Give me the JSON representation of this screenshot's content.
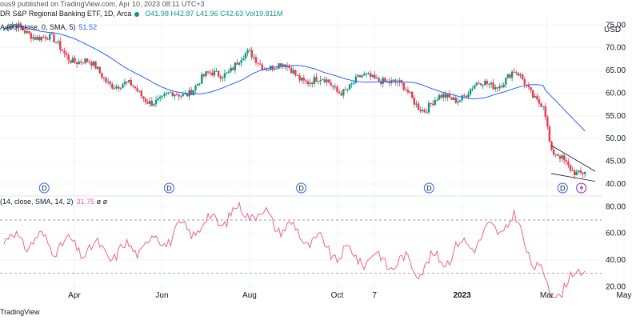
{
  "header": {
    "publisher": "ous9 published on TradingView.com, Apr 10, 2023 08:11 UTC+3",
    "title": "DR S&P Regional Banking ETF, 1D, Arca",
    "open": "O41.98",
    "high": "H42.87",
    "low": "L41.96",
    "close": "C42.63",
    "volume": "Vol19.811M",
    "ma_label": "A (50, close, 0, SMA, 5)",
    "ma_value": "51.52",
    "rsi_label": "(14, close, SMA, 14, 2)",
    "rsi_value": "31.75",
    "rsi_extra": "ø ø",
    "footer": "TradingView"
  },
  "colors": {
    "up": "#089981",
    "down": "#f23645",
    "ma": "#2962ff",
    "rsi": "#f06292",
    "grid": "#f0f3fa"
  },
  "chart_data": [
    {
      "type": "candlestick",
      "title": "S&P Regional Banking ETF, 1D, Arca",
      "ylabel": "USD",
      "yticks": [
        40.0,
        45.0,
        50.0,
        55.0,
        60.0,
        65.0,
        70.0,
        75.0
      ],
      "ytick_labels": [
        "40.00",
        "45.00",
        "50.00",
        "55.00",
        "60.00",
        "65.00",
        "70.00",
        "75.00"
      ],
      "ylim": [
        40,
        77
      ],
      "x_tick_labels": [
        "Apr",
        "Jun",
        "Aug",
        "Oct",
        "7",
        "2023",
        "Mar",
        "May"
      ],
      "key_points": [
        {
          "date": "2022-03",
          "close": 74
        },
        {
          "date": "2022-05",
          "close": 62
        },
        {
          "date": "2022-06",
          "close": 58
        },
        {
          "date": "2022-08",
          "close": 68
        },
        {
          "date": "2022-10",
          "close": 61
        },
        {
          "date": "2022-11",
          "close": 64
        },
        {
          "date": "2022-12",
          "close": 57
        },
        {
          "date": "2023-02",
          "close": 64
        },
        {
          "date": "2023-03-08",
          "close": 58
        },
        {
          "date": "2023-03-13",
          "close": 46
        },
        {
          "date": "2023-04-06",
          "close": 42.63
        }
      ],
      "series": [
        {
          "name": "MA (50, close, 0, SMA, 5)",
          "last_value": 51.52
        }
      ],
      "grid": true
    },
    {
      "type": "line",
      "title": "RSI (14, close, SMA, 14, 2)",
      "yticks": [
        20.0,
        40.0,
        60.0,
        80.0
      ],
      "ytick_labels": [
        "20.00",
        "40.00",
        "60.00",
        "80.00"
      ],
      "ylim": [
        10,
        85
      ],
      "bands": [
        30,
        70
      ],
      "last_value": 31.75,
      "key_points": [
        {
          "date": "2022-03",
          "value": 55
        },
        {
          "date": "2022-05",
          "value": 45
        },
        {
          "date": "2022-08",
          "value": 78
        },
        {
          "date": "2022-10",
          "value": 45
        },
        {
          "date": "2022-12",
          "value": 35
        },
        {
          "date": "2023-02",
          "value": 70
        },
        {
          "date": "2023-03-13",
          "value": 14
        },
        {
          "date": "2023-04-06",
          "value": 31.75
        }
      ]
    }
  ]
}
